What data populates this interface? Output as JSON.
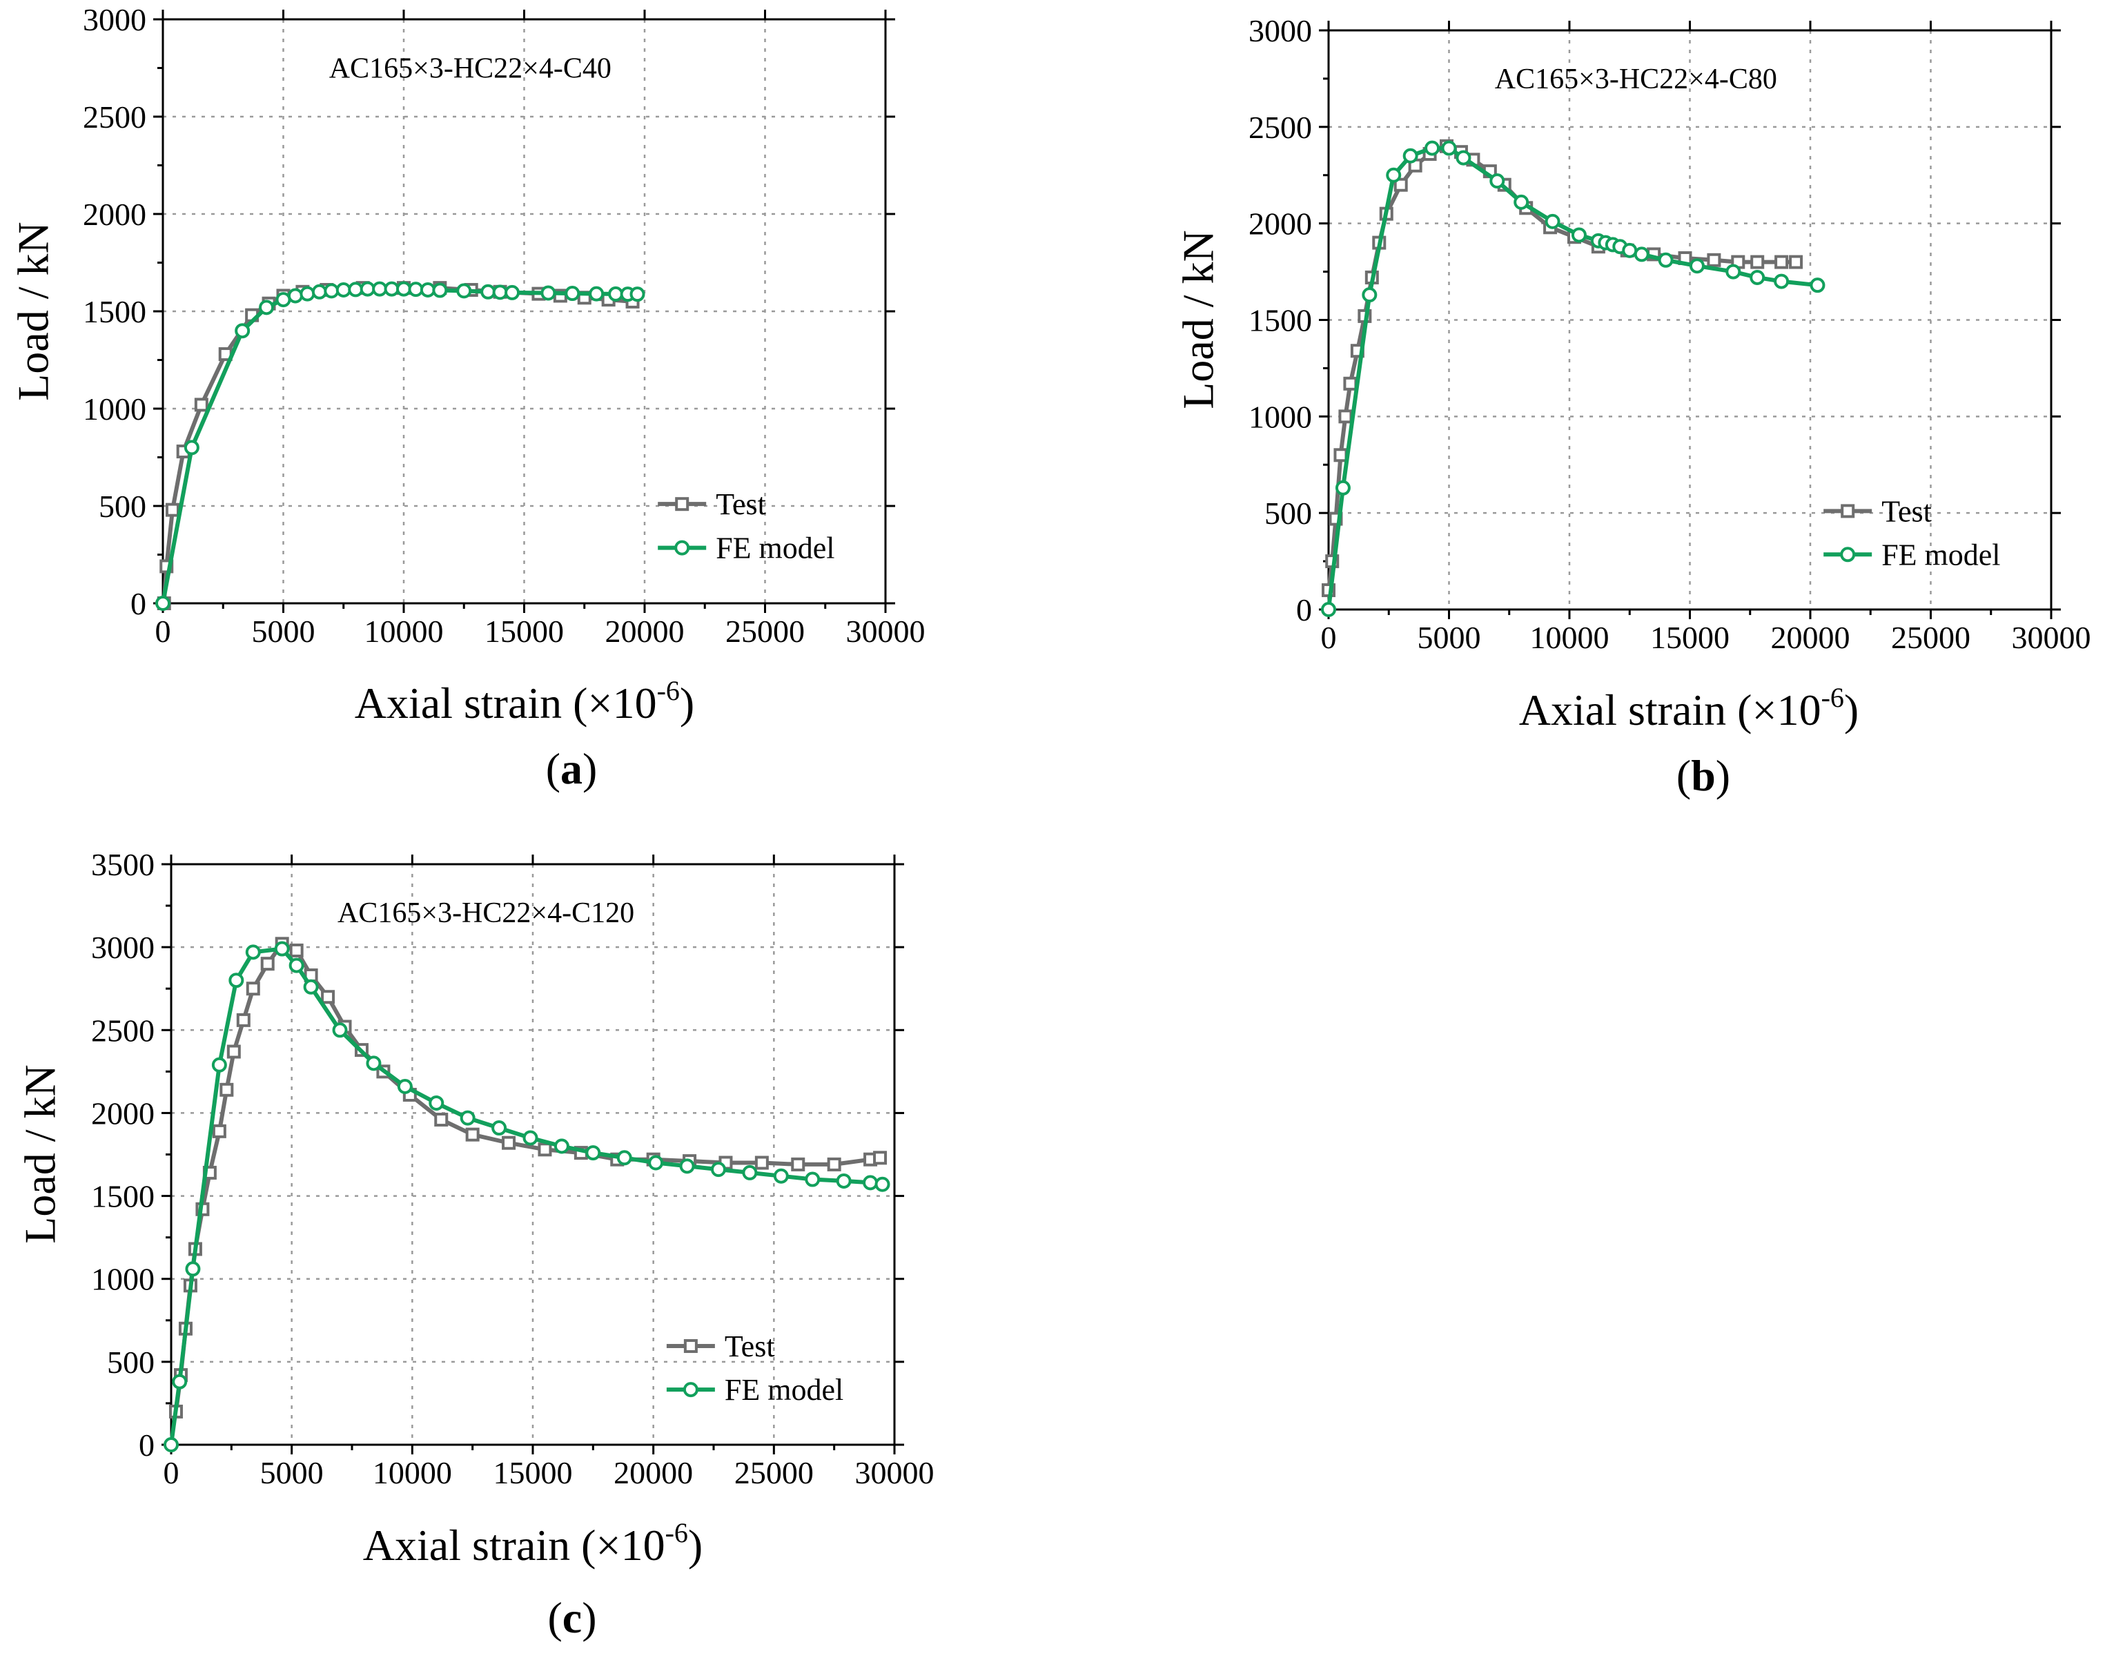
{
  "figure": {
    "panels": [
      "a",
      "b",
      "c"
    ]
  },
  "colors": {
    "test": "#6e6e6e",
    "fe": "#12a05c",
    "grid": "#9a9a9a",
    "axis": "#000000"
  },
  "chart_data": [
    {
      "panel": "a",
      "type": "line",
      "title": "AC165×3-HC22×4-C40",
      "xlabel": "Axial strain (×10",
      "xlabel_exp": "-6",
      "xlabel_end": ")",
      "ylabel": "Load / kN",
      "xlim": [
        0,
        30000
      ],
      "ylim": [
        0,
        3000
      ],
      "xticks": [
        0,
        5000,
        10000,
        15000,
        20000,
        25000,
        30000
      ],
      "yticks": [
        0,
        500,
        1000,
        1500,
        2000,
        2500,
        3000
      ],
      "legend_position": "bottom-right",
      "label_open": "(",
      "label_letter": "a",
      "label_close": ")",
      "series": [
        {
          "name": "Test",
          "marker": "square",
          "x": [
            50,
            150,
            400,
            850,
            1600,
            2600,
            3700,
            4400,
            5000,
            5800,
            6800,
            8300,
            10000,
            11500,
            12800,
            14000,
            15600,
            16500,
            17500,
            18500,
            19500
          ],
          "y": [
            0,
            190,
            480,
            780,
            1020,
            1280,
            1480,
            1540,
            1580,
            1600,
            1610,
            1620,
            1620,
            1620,
            1610,
            1600,
            1590,
            1580,
            1570,
            1560,
            1550
          ]
        },
        {
          "name": "FE model",
          "marker": "circle",
          "x": [
            0,
            1200,
            3300,
            4300,
            5000,
            5500,
            6000,
            6500,
            7000,
            7500,
            8000,
            8500,
            9000,
            9500,
            10000,
            10500,
            11000,
            11500,
            12500,
            13500,
            14000,
            14500,
            16000,
            17000,
            18000,
            18800,
            19300,
            19700
          ],
          "y": [
            0,
            800,
            1400,
            1520,
            1560,
            1580,
            1590,
            1600,
            1605,
            1610,
            1612,
            1615,
            1615,
            1615,
            1615,
            1613,
            1610,
            1608,
            1605,
            1600,
            1598,
            1596,
            1594,
            1592,
            1590,
            1589,
            1588,
            1588
          ]
        }
      ]
    },
    {
      "panel": "b",
      "type": "line",
      "title": "AC165×3-HC22×4-C80",
      "xlabel": "Axial strain (×10",
      "xlabel_exp": "-6",
      "xlabel_end": ")",
      "ylabel": "Load / kN",
      "xlim": [
        0,
        30000
      ],
      "ylim": [
        0,
        3000
      ],
      "xticks": [
        0,
        5000,
        10000,
        15000,
        20000,
        25000,
        30000
      ],
      "yticks": [
        0,
        500,
        1000,
        1500,
        2000,
        2500,
        3000
      ],
      "legend_position": "bottom-right",
      "label_open": "(",
      "label_letter": "b",
      "label_close": ")",
      "series": [
        {
          "name": "Test",
          "marker": "square",
          "x": [
            0,
            150,
            300,
            500,
            700,
            900,
            1200,
            1500,
            1800,
            2100,
            2400,
            3000,
            3600,
            4200,
            4900,
            5500,
            6000,
            6700,
            7300,
            8200,
            9200,
            10200,
            11200,
            12400,
            13500,
            14800,
            16000,
            17000,
            17800,
            18800,
            19400
          ],
          "y": [
            100,
            250,
            470,
            800,
            1000,
            1170,
            1340,
            1520,
            1720,
            1900,
            2050,
            2200,
            2300,
            2360,
            2400,
            2370,
            2330,
            2270,
            2200,
            2080,
            1980,
            1930,
            1880,
            1860,
            1840,
            1820,
            1810,
            1800,
            1800,
            1800,
            1800
          ]
        },
        {
          "name": "FE model",
          "marker": "circle",
          "x": [
            0,
            600,
            1700,
            2700,
            3400,
            4300,
            5000,
            5600,
            7000,
            8000,
            9300,
            10400,
            11200,
            11500,
            11800,
            12100,
            12500,
            13000,
            14000,
            15300,
            16800,
            17800,
            18800,
            20300
          ],
          "y": [
            0,
            630,
            1630,
            2250,
            2350,
            2390,
            2390,
            2340,
            2220,
            2110,
            2010,
            1940,
            1910,
            1900,
            1890,
            1880,
            1860,
            1840,
            1810,
            1780,
            1750,
            1720,
            1700,
            1680
          ]
        }
      ]
    },
    {
      "panel": "c",
      "type": "line",
      "title": "AC165×3-HC22×4-C120",
      "xlabel": "Axial strain (×10",
      "xlabel_exp": "-6",
      "xlabel_end": ")",
      "ylabel": "Load / kN",
      "xlim": [
        0,
        30000
      ],
      "ylim": [
        0,
        3500
      ],
      "xticks": [
        0,
        5000,
        10000,
        15000,
        20000,
        25000,
        30000
      ],
      "yticks": [
        0,
        500,
        1000,
        1500,
        2000,
        2500,
        3000,
        3500
      ],
      "legend_position": "bottom-right",
      "label_open": "(",
      "label_letter": "c",
      "label_close": ")",
      "series": [
        {
          "name": "Test",
          "marker": "square",
          "x": [
            200,
            400,
            600,
            800,
            1000,
            1300,
            1600,
            2000,
            2300,
            2600,
            3000,
            3400,
            4000,
            4600,
            5200,
            5800,
            6500,
            7200,
            7900,
            8800,
            9900,
            11200,
            12500,
            14000,
            15500,
            17000,
            18500,
            20000,
            21500,
            23000,
            24500,
            26000,
            27500,
            29000,
            29400
          ],
          "y": [
            200,
            420,
            700,
            960,
            1180,
            1420,
            1640,
            1890,
            2140,
            2370,
            2560,
            2750,
            2900,
            3020,
            2980,
            2830,
            2700,
            2520,
            2380,
            2250,
            2110,
            1960,
            1870,
            1820,
            1780,
            1760,
            1720,
            1720,
            1710,
            1700,
            1700,
            1690,
            1690,
            1720,
            1730
          ]
        },
        {
          "name": "FE model",
          "marker": "circle",
          "x": [
            0,
            350,
            900,
            2000,
            2700,
            3400,
            4600,
            5200,
            5800,
            7000,
            8400,
            9700,
            11000,
            12300,
            13600,
            14900,
            16200,
            17500,
            18800,
            20100,
            21400,
            22700,
            24000,
            25300,
            26600,
            27900,
            29000,
            29500
          ],
          "y": [
            0,
            380,
            1060,
            2290,
            2800,
            2970,
            2990,
            2890,
            2760,
            2500,
            2300,
            2160,
            2060,
            1970,
            1910,
            1850,
            1800,
            1760,
            1730,
            1700,
            1680,
            1660,
            1640,
            1620,
            1600,
            1590,
            1580,
            1570
          ]
        }
      ]
    }
  ]
}
